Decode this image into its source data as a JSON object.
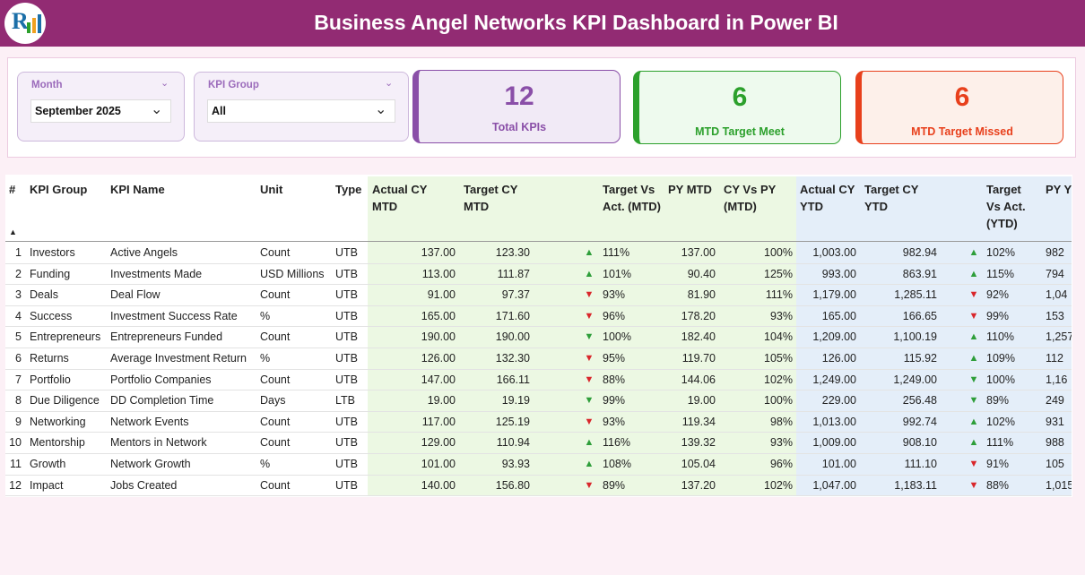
{
  "header": {
    "title": "Business Angel Networks KPI Dashboard in Power BI"
  },
  "filters": [
    {
      "label": "Month",
      "value": "September 2025"
    },
    {
      "label": "KPI Group",
      "value": "All"
    }
  ],
  "cards": [
    {
      "value": "12",
      "label": "Total KPIs",
      "color": "#8a4fa8",
      "background": "#f1eaf6"
    },
    {
      "value": "6",
      "label": "MTD Target Meet",
      "color": "#2ca02c",
      "background": "#eefaee"
    },
    {
      "value": "6",
      "label": "MTD Target Missed",
      "color": "#e8401c",
      "background": "#fdf0ea"
    }
  ],
  "table": {
    "columns": [
      "#",
      "KPI Group",
      "KPI Name",
      "Unit",
      "Type",
      "Actual CY MTD",
      "Target CY MTD",
      "Target Vs Act. (MTD)",
      "PY MTD",
      "CY Vs PY (MTD)",
      "Actual CY YTD",
      "Target CY YTD",
      "Target Vs Act. (YTD)",
      "PY Y"
    ],
    "rows": [
      {
        "cells": [
          "1",
          "Investors",
          "Active Angels",
          "Count",
          "UTB",
          "137.00",
          "123.30",
          "▲",
          "111%",
          "137.00",
          "100%",
          "1,003.00",
          "982.94",
          "▲",
          "102%",
          "982"
        ],
        "arrow_colors": [
          "#2e9e3a",
          "#2e9e3a"
        ]
      },
      {
        "cells": [
          "2",
          "Funding",
          "Investments Made",
          "USD Millions",
          "UTB",
          "113.00",
          "111.87",
          "▲",
          "101%",
          "90.40",
          "125%",
          "993.00",
          "863.91",
          "▲",
          "115%",
          "794"
        ],
        "arrow_colors": [
          "#2e9e3a",
          "#2e9e3a"
        ]
      },
      {
        "cells": [
          "3",
          "Deals",
          "Deal Flow",
          "Count",
          "UTB",
          "91.00",
          "97.37",
          "▼",
          "93%",
          "81.90",
          "111%",
          "1,179.00",
          "1,285.11",
          "▼",
          "92%",
          "1,04"
        ],
        "arrow_colors": [
          "#d9262b",
          "#d9262b"
        ]
      },
      {
        "cells": [
          "4",
          "Success",
          "Investment Success Rate",
          "%",
          "UTB",
          "165.00",
          "171.60",
          "▼",
          "96%",
          "178.20",
          "93%",
          "165.00",
          "166.65",
          "▼",
          "99%",
          "153"
        ],
        "arrow_colors": [
          "#d9262b",
          "#d9262b"
        ]
      },
      {
        "cells": [
          "5",
          "Entrepreneurs",
          "Entrepreneurs Funded",
          "Count",
          "UTB",
          "190.00",
          "190.00",
          "▼",
          "100%",
          "182.40",
          "104%",
          "1,209.00",
          "1,100.19",
          "▲",
          "110%",
          "1,257"
        ],
        "arrow_colors": [
          "#2e9e3a",
          "#2e9e3a"
        ]
      },
      {
        "cells": [
          "6",
          "Returns",
          "Average Investment Return",
          "%",
          "UTB",
          "126.00",
          "132.30",
          "▼",
          "95%",
          "119.70",
          "105%",
          "126.00",
          "115.92",
          "▲",
          "109%",
          "112"
        ],
        "arrow_colors": [
          "#d9262b",
          "#2e9e3a"
        ]
      },
      {
        "cells": [
          "7",
          "Portfolio",
          "Portfolio Companies",
          "Count",
          "UTB",
          "147.00",
          "166.11",
          "▼",
          "88%",
          "144.06",
          "102%",
          "1,249.00",
          "1,249.00",
          "▼",
          "100%",
          "1,16"
        ],
        "arrow_colors": [
          "#d9262b",
          "#2e9e3a"
        ]
      },
      {
        "cells": [
          "8",
          "Due Diligence",
          "DD Completion Time",
          "Days",
          "LTB",
          "19.00",
          "19.19",
          "▼",
          "99%",
          "19.00",
          "100%",
          "229.00",
          "256.48",
          "▼",
          "89%",
          "249"
        ],
        "arrow_colors": [
          "#2e9e3a",
          "#2e9e3a"
        ]
      },
      {
        "cells": [
          "9",
          "Networking",
          "Network Events",
          "Count",
          "UTB",
          "117.00",
          "125.19",
          "▼",
          "93%",
          "119.34",
          "98%",
          "1,013.00",
          "992.74",
          "▲",
          "102%",
          "931"
        ],
        "arrow_colors": [
          "#d9262b",
          "#2e9e3a"
        ]
      },
      {
        "cells": [
          "10",
          "Mentorship",
          "Mentors in Network",
          "Count",
          "UTB",
          "129.00",
          "110.94",
          "▲",
          "116%",
          "139.32",
          "93%",
          "1,009.00",
          "908.10",
          "▲",
          "111%",
          "988"
        ],
        "arrow_colors": [
          "#2e9e3a",
          "#2e9e3a"
        ]
      },
      {
        "cells": [
          "11",
          "Growth",
          "Network Growth",
          "%",
          "UTB",
          "101.00",
          "93.93",
          "▲",
          "108%",
          "105.04",
          "96%",
          "101.00",
          "111.10",
          "▼",
          "91%",
          "105"
        ],
        "arrow_colors": [
          "#2e9e3a",
          "#d9262b"
        ]
      },
      {
        "cells": [
          "12",
          "Impact",
          "Jobs Created",
          "Count",
          "UTB",
          "140.00",
          "156.80",
          "▼",
          "89%",
          "137.20",
          "102%",
          "1,047.00",
          "1,183.11",
          "▼",
          "88%",
          "1,015"
        ],
        "arrow_colors": [
          "#d9262b",
          "#d9262b"
        ]
      }
    ]
  }
}
